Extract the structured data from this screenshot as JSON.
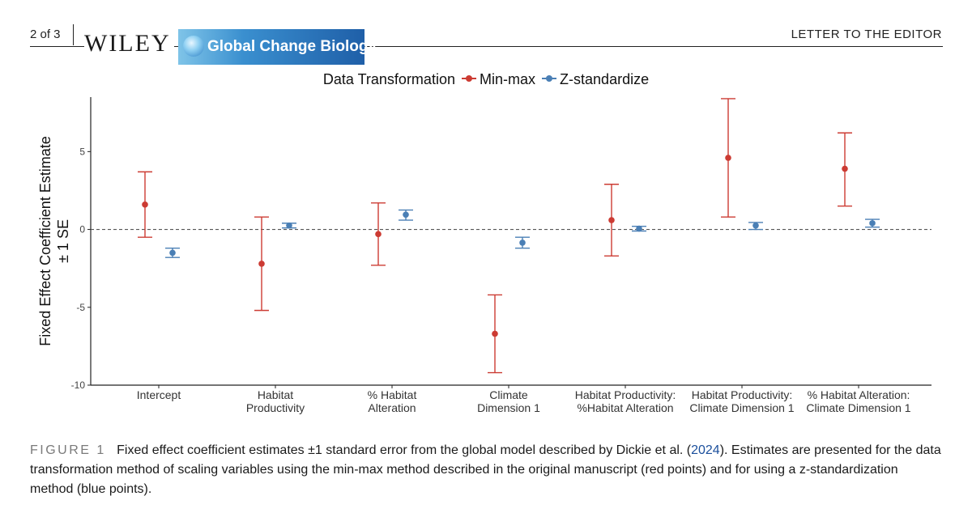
{
  "header": {
    "page_number": "2 of 3",
    "publisher": "WILEY",
    "journal": "Global Change Biology",
    "section": "LETTER TO THE EDITOR"
  },
  "legend": {
    "title": "Data Transformation",
    "entries": [
      {
        "name": "Min-max",
        "color": "#cc3b33"
      },
      {
        "name": "Z-standardize",
        "color": "#4a7fb5"
      }
    ]
  },
  "chart_data": {
    "type": "scatter",
    "subtype": "point estimates with ±1 SE error bars (dodged)",
    "title": "",
    "xlabel": "",
    "ylabel": [
      "Fixed Effect Coefficient Estimate",
      "± 1 SE"
    ],
    "ylim": [
      -10,
      8.5
    ],
    "yticks": [
      -10,
      -5,
      0,
      5
    ],
    "ytick_labels": [
      "-10",
      "-5",
      "0",
      "5"
    ],
    "reference_line": 0,
    "categories": [
      [
        "Intercept"
      ],
      [
        "Habitat",
        "Productivity"
      ],
      [
        "% Habitat",
        "Alteration"
      ],
      [
        "Climate",
        "Dimension 1"
      ],
      [
        "Habitat Productivity:",
        "%Habitat Alteration"
      ],
      [
        "Habitat Productivity:",
        "Climate Dimension 1"
      ],
      [
        "% Habitat Alteration:",
        "Climate Dimension 1"
      ]
    ],
    "series": [
      {
        "name": "Min-max",
        "color": "#cc3b33",
        "values": [
          1.6,
          -2.2,
          -0.3,
          -6.7,
          0.6,
          4.6,
          3.9
        ],
        "lower": [
          -0.5,
          -5.2,
          -2.3,
          -9.2,
          -1.7,
          0.8,
          1.5
        ],
        "upper": [
          3.7,
          0.8,
          1.7,
          -4.2,
          2.9,
          8.4,
          6.2
        ]
      },
      {
        "name": "Z-standardize",
        "color": "#4a7fb5",
        "values": [
          -1.5,
          0.25,
          0.95,
          -0.85,
          0.05,
          0.25,
          0.4
        ],
        "lower": [
          -1.8,
          0.1,
          0.6,
          -1.2,
          -0.1,
          0.0,
          0.15
        ],
        "upper": [
          -1.2,
          0.4,
          1.25,
          -0.5,
          0.2,
          0.45,
          0.65
        ]
      }
    ]
  },
  "caption": {
    "label": "FIGURE 1",
    "text_before": "Fixed effect coefficient estimates ±1 standard error from the global model described by Dickie et al. (",
    "citation_year": "2024",
    "text_after": "). Estimates are presented for the data transformation method of scaling variables using the min-max method described in the original manuscript (red points) and for using a z-standardization method (blue points)."
  }
}
